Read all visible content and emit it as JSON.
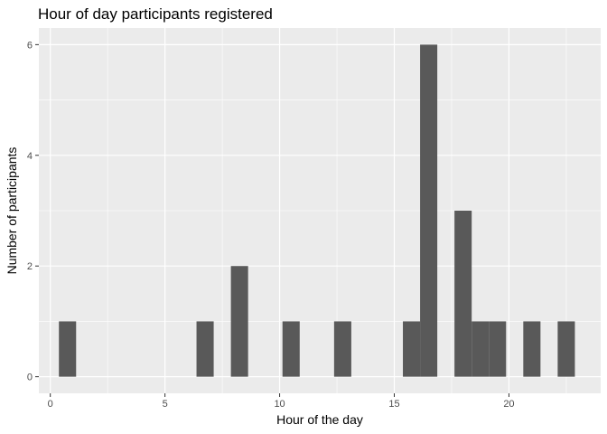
{
  "chart_data": {
    "type": "bar",
    "title": "Hour of day participants registered",
    "xlabel": "Hour of the day",
    "ylabel": "Number of participants",
    "xlim": [
      -0.5,
      24.0
    ],
    "ylim": [
      -0.3,
      6.3
    ],
    "x_ticks": [
      0,
      5,
      10,
      15,
      20
    ],
    "y_ticks": [
      0,
      2,
      4,
      6
    ],
    "x_tick_labels": [
      "0",
      "5",
      "10",
      "15",
      "20"
    ],
    "y_tick_labels": [
      "0",
      "2",
      "4",
      "6"
    ],
    "grid": true,
    "bin_width": 0.75,
    "bars": [
      {
        "center": 0.75,
        "value": 1
      },
      {
        "center": 6.75,
        "value": 1
      },
      {
        "center": 8.25,
        "value": 2
      },
      {
        "center": 10.5,
        "value": 1
      },
      {
        "center": 12.75,
        "value": 1
      },
      {
        "center": 15.75,
        "value": 1
      },
      {
        "center": 16.5,
        "value": 6
      },
      {
        "center": 18.0,
        "value": 3
      },
      {
        "center": 18.75,
        "value": 1
      },
      {
        "center": 19.5,
        "value": 1
      },
      {
        "center": 21.0,
        "value": 1
      },
      {
        "center": 22.5,
        "value": 1
      }
    ],
    "colors": {
      "panel": "#ebebeb",
      "bar": "#595959",
      "grid_major": "#ffffff",
      "tick_text": "#4d4d4d"
    }
  }
}
